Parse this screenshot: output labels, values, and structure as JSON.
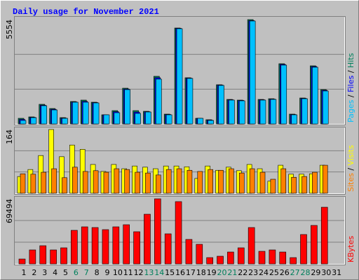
{
  "title": "Daily usage for November 2021",
  "legend_separator": "/",
  "chart_data": [
    {
      "type": "bar",
      "ylim": [
        0,
        5554
      ],
      "yticks": [
        5554
      ],
      "series": [
        {
          "name": "Hits",
          "color": "#00805C",
          "values": [
            298,
            373,
            1044,
            820,
            335,
            1193,
            1268,
            1156,
            485,
            708,
            1901,
            708,
            671,
            2535,
            522,
            5107,
            2460,
            298,
            224,
            2087,
            1305,
            1268,
            5554,
            1305,
            1342,
            3206,
            522,
            1380,
            3094,
            1827,
            0
          ]
        },
        {
          "name": "Files",
          "color": "#0000FF",
          "values": [
            240,
            350,
            1000,
            780,
            310,
            1170,
            1200,
            1135,
            485,
            650,
            1860,
            630,
            650,
            2460,
            500,
            5090,
            2440,
            298,
            205,
            2070,
            1285,
            1250,
            5500,
            1285,
            1320,
            3170,
            500,
            1360,
            3055,
            1790,
            0
          ]
        },
        {
          "name": "Pages",
          "color": "#00C0FF",
          "values": [
            186,
            335,
            969,
            745,
            298,
            1156,
            1156,
            1118,
            485,
            596,
            1827,
            559,
            634,
            2386,
            485,
            5070,
            2423,
            298,
            186,
            2050,
            1268,
            1230,
            5480,
            1268,
            1305,
            3131,
            485,
            1342,
            3019,
            1753,
            0
          ]
        }
      ]
    },
    {
      "type": "bar",
      "ylim": [
        0,
        164
      ],
      "yticks": [
        164
      ],
      "series": [
        {
          "name": "Visits",
          "color": "#FFFF00",
          "values": [
            43,
            61,
            97,
            164,
            94,
            124,
            113,
            74,
            56,
            74,
            63,
            70,
            67,
            63,
            70,
            70,
            68,
            38,
            70,
            59,
            67,
            58,
            74,
            63,
            31,
            72,
            49,
            49,
            50,
            72,
            0
          ]
        },
        {
          "name": "Sites",
          "color": "#FF8000",
          "values": [
            50,
            49,
            54,
            63,
            40,
            67,
            56,
            58,
            54,
            63,
            61,
            54,
            52,
            47,
            61,
            63,
            59,
            56,
            61,
            59,
            63,
            52,
            63,
            54,
            36,
            63,
            41,
            43,
            54,
            72,
            0
          ]
        }
      ]
    },
    {
      "type": "bar",
      "ylim": [
        0,
        69494
      ],
      "yticks": [
        69494
      ],
      "categories": [
        "1",
        "2",
        "3",
        "4",
        "5",
        "6",
        "7",
        "8",
        "9",
        "10",
        "11",
        "12",
        "13",
        "14",
        "15",
        "16",
        "17",
        "18",
        "19",
        "20",
        "21",
        "22",
        "23",
        "24",
        "25",
        "26",
        "27",
        "28",
        "29",
        "30",
        "31"
      ],
      "category_colors": [
        "#000000",
        "#000000",
        "#000000",
        "#000000",
        "#000000",
        "#00805C",
        "#00805C",
        "#000000",
        "#000000",
        "#000000",
        "#000000",
        "#000000",
        "#00805C",
        "#00805C",
        "#000000",
        "#000000",
        "#000000",
        "#000000",
        "#000000",
        "#00805C",
        "#00805C",
        "#000000",
        "#000000",
        "#000000",
        "#000000",
        "#000000",
        "#00805C",
        "#00805C",
        "#000000",
        "#000000",
        "#000000"
      ],
      "series": [
        {
          "name": "KBytes",
          "color": "#FF0000",
          "values": [
            5229,
            14940,
            19422,
            14940,
            17181,
            35856,
            39591,
            38844,
            36603,
            39591,
            41832,
            34362,
            53037,
            69494,
            32121,
            66498,
            26145,
            20916,
            6723,
            8217,
            12699,
            17181,
            38844,
            13446,
            14940,
            12699,
            6723,
            31374,
            41085,
            60507,
            0
          ]
        }
      ]
    }
  ]
}
